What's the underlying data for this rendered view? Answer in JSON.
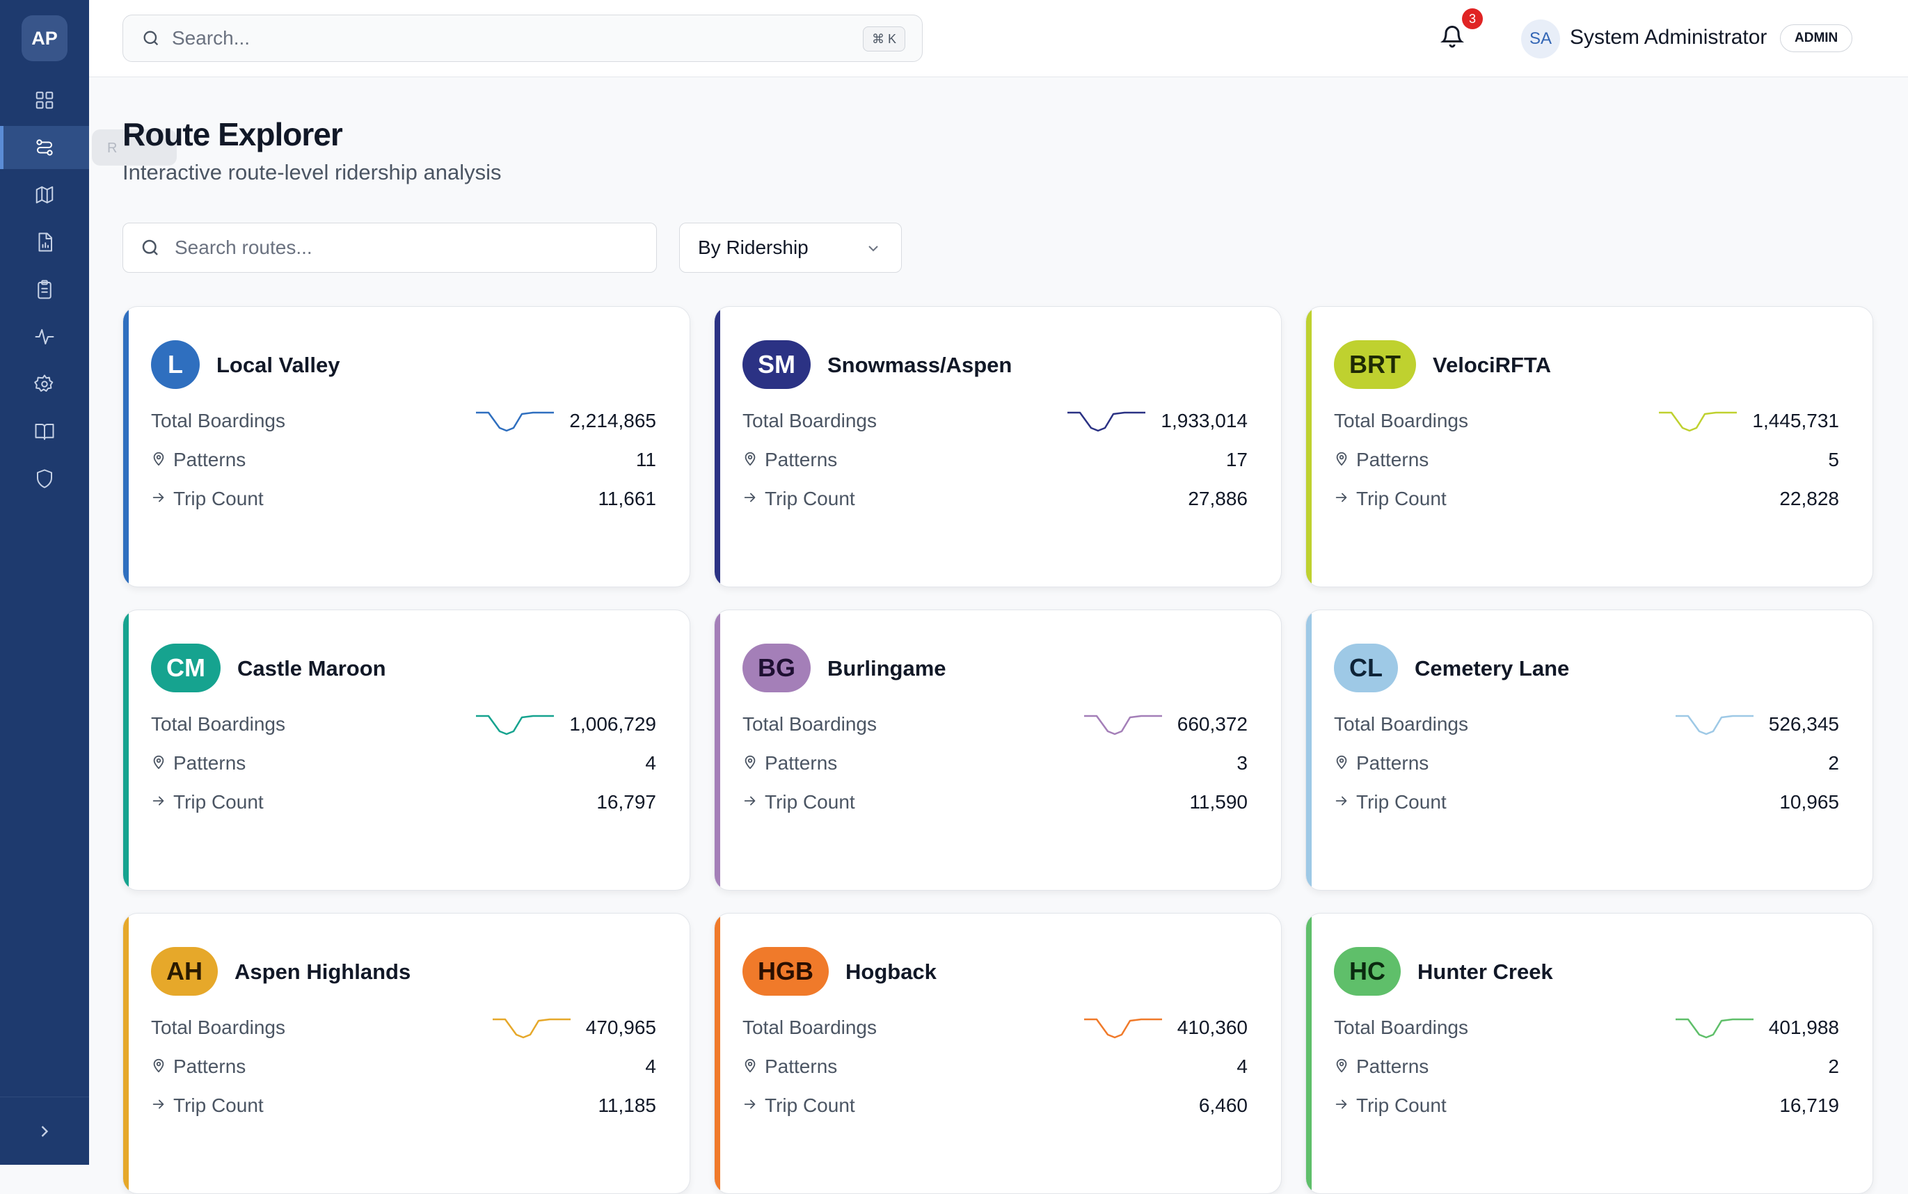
{
  "sidebar": {
    "logo": "AP",
    "tooltip": "R",
    "items": [
      {
        "icon": "dashboard-icon"
      },
      {
        "icon": "route-icon"
      },
      {
        "icon": "map-icon"
      },
      {
        "icon": "report-icon"
      },
      {
        "icon": "clipboard-icon"
      },
      {
        "icon": "activity-icon"
      },
      {
        "icon": "gear-icon"
      },
      {
        "icon": "book-icon"
      },
      {
        "icon": "shield-icon"
      }
    ],
    "expand_icon": "chevron-right-icon"
  },
  "header": {
    "search_placeholder": "Search...",
    "search_shortcut": "⌘ K",
    "notification_count": "3",
    "user_initials": "SA",
    "user_name": "System Administrator",
    "user_role": "ADMIN"
  },
  "page": {
    "title": "Route Explorer",
    "subtitle": "Interactive route-level ridership analysis",
    "route_search_placeholder": "Search routes...",
    "sort_value": "By Ridership"
  },
  "labels": {
    "total_boardings": "Total Boardings",
    "patterns": "Patterns",
    "trip_count": "Trip Count"
  },
  "routes": [
    {
      "code": "L",
      "name": "Local Valley",
      "color": "#2f6fbf",
      "badge_text_color": "#ffffff",
      "boardings": "2,214,865",
      "patterns": "11",
      "trips": "11,661"
    },
    {
      "code": "SM",
      "name": "Snowmass/Aspen",
      "color": "#2b3284",
      "badge_text_color": "#ffffff",
      "boardings": "1,933,014",
      "patterns": "17",
      "trips": "27,886"
    },
    {
      "code": "BRT",
      "name": "VelociRFTA",
      "color": "#bfd12f",
      "badge_text_color": "#1f2a05",
      "boardings": "1,445,731",
      "patterns": "5",
      "trips": "22,828"
    },
    {
      "code": "CM",
      "name": "Castle Maroon",
      "color": "#16a38f",
      "badge_text_color": "#ffffff",
      "boardings": "1,006,729",
      "patterns": "4",
      "trips": "16,797"
    },
    {
      "code": "BG",
      "name": "Burlingame",
      "color": "#a47fb8",
      "badge_text_color": "#1f1033",
      "boardings": "660,372",
      "patterns": "3",
      "trips": "11,590"
    },
    {
      "code": "CL",
      "name": "Cemetery Lane",
      "color": "#9ec9e6",
      "badge_text_color": "#0f2438",
      "boardings": "526,345",
      "patterns": "2",
      "trips": "10,965"
    },
    {
      "code": "AH",
      "name": "Aspen Highlands",
      "color": "#e6a82a",
      "badge_text_color": "#2a1a00",
      "boardings": "470,965",
      "patterns": "4",
      "trips": "11,185"
    },
    {
      "code": "HGB",
      "name": "Hogback",
      "color": "#f07a2a",
      "badge_text_color": "#2a0f00",
      "boardings": "410,360",
      "patterns": "4",
      "trips": "6,460"
    },
    {
      "code": "HC",
      "name": "Hunter Creek",
      "color": "#5fbf6a",
      "badge_text_color": "#0b2a10",
      "boardings": "401,988",
      "patterns": "2",
      "trips": "16,719"
    }
  ]
}
